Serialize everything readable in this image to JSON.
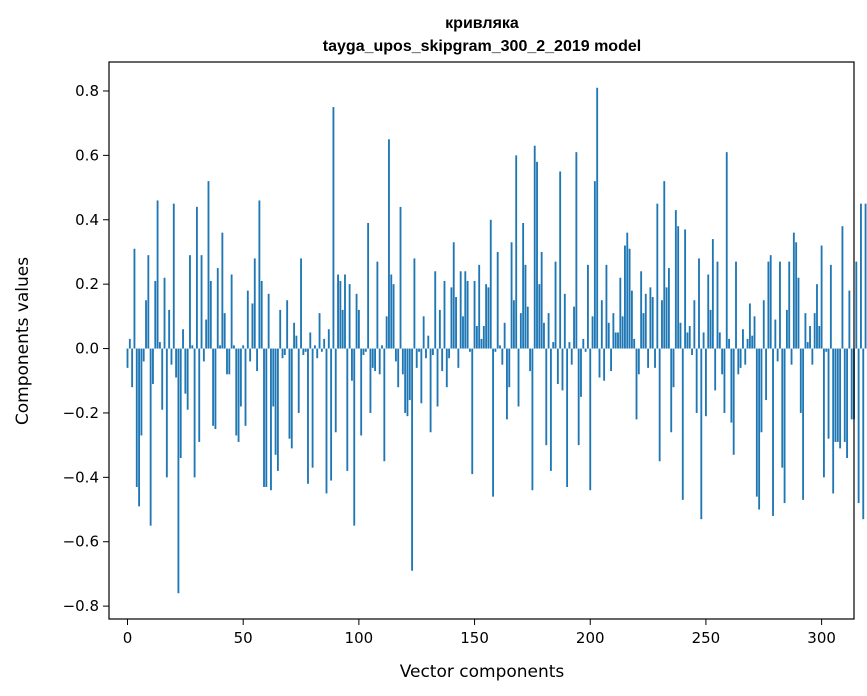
{
  "chart_data": {
    "type": "bar",
    "title": "кривляка",
    "subtitle": "tayga_upos_skipgram_300_2_2019 model",
    "xlabel": "Vector components",
    "ylabel": "Components values",
    "xlim": [
      -8,
      314
    ],
    "ylim": [
      -0.84,
      0.89
    ],
    "xticks": [
      0,
      50,
      100,
      150,
      200,
      250,
      300
    ],
    "xtick_labels": [
      "0",
      "50",
      "100",
      "150",
      "200",
      "250",
      "300"
    ],
    "yticks": [
      -0.8,
      -0.6,
      -0.4,
      -0.2,
      0.0,
      0.2,
      0.4,
      0.6,
      0.8
    ],
    "ytick_labels": [
      "−0.8",
      "−0.6",
      "−0.4",
      "−0.2",
      "0.0",
      "0.2",
      "0.4",
      "0.6",
      "0.8"
    ],
    "grid": false,
    "color": "#1f77b4",
    "values": [
      -0.06,
      0.03,
      -0.12,
      0.31,
      -0.43,
      -0.49,
      -0.27,
      -0.04,
      0.15,
      0.29,
      -0.55,
      -0.11,
      0.21,
      0.46,
      0.02,
      -0.19,
      0.22,
      -0.4,
      0.12,
      -0.05,
      0.45,
      -0.09,
      -0.76,
      -0.34,
      0.06,
      -0.14,
      -0.19,
      0.29,
      0.01,
      -0.4,
      0.44,
      -0.29,
      0.29,
      -0.04,
      0.09,
      0.52,
      0.21,
      -0.24,
      -0.25,
      0.25,
      0.01,
      0.36,
      0.11,
      -0.08,
      -0.08,
      0.23,
      0.01,
      -0.27,
      -0.29,
      -0.18,
      0.01,
      -0.24,
      0.18,
      -0.04,
      0.14,
      0.28,
      -0.07,
      0.46,
      0.21,
      -0.43,
      -0.43,
      0.17,
      -0.44,
      -0.18,
      -0.33,
      -0.38,
      0.12,
      -0.03,
      -0.02,
      0.15,
      -0.28,
      -0.31,
      0.08,
      0.04,
      -0.2,
      0.28,
      -0.02,
      -0.01,
      -0.42,
      0.05,
      -0.37,
      0.01,
      -0.03,
      0.11,
      -0.01,
      0.03,
      -0.45,
      0.06,
      -0.41,
      0.75,
      -0.26,
      0.23,
      0.21,
      0.12,
      0.23,
      -0.38,
      0.2,
      -0.1,
      -0.55,
      0.17,
      0.12,
      -0.27,
      -0.02,
      -0.01,
      0.39,
      -0.2,
      -0.06,
      -0.07,
      0.27,
      -0.08,
      0.01,
      -0.35,
      0.1,
      0.65,
      0.23,
      0.2,
      -0.04,
      -0.12,
      0.44,
      -0.08,
      -0.2,
      -0.21,
      -0.16,
      -0.69,
      0.28,
      -0.06,
      -0.01,
      -0.17,
      0.1,
      -0.03,
      0.04,
      -0.26,
      -0.02,
      0.24,
      -0.18,
      0.12,
      -0.07,
      0.21,
      -0.12,
      -0.03,
      0.19,
      0.33,
      0.16,
      -0.06,
      0.24,
      0.1,
      0.24,
      0.21,
      -0.01,
      -0.39,
      0.21,
      0.07,
      0.26,
      0.03,
      0.07,
      0.2,
      0.19,
      0.4,
      -0.46,
      -0.01,
      0.3,
      0.01,
      -0.05,
      0.08,
      -0.22,
      -0.12,
      0.33,
      0.15,
      0.6,
      -0.18,
      0.11,
      0.39,
      0.26,
      0.13,
      -0.07,
      -0.44,
      0.63,
      0.58,
      0.2,
      0.3,
      0.08,
      -0.3,
      0.11,
      -0.38,
      0.02,
      0.27,
      -0.11,
      0.55,
      -0.13,
      0.17,
      -0.43,
      0.02,
      -0.05,
      0.13,
      0.61,
      -0.3,
      -0.15,
      0.03,
      -0.01,
      0.26,
      -0.44,
      0.1,
      0.52,
      0.81,
      -0.09,
      0.15,
      -0.1,
      0.26,
      0.08,
      -0.07,
      0.11,
      0.05,
      0.05,
      0.22,
      0.1,
      0.32,
      0.36,
      0.31,
      0.18,
      0.03,
      -0.22,
      -0.08,
      0.24,
      0.11,
      0.17,
      -0.06,
      0.19,
      0.16,
      -0.06,
      0.45,
      -0.35,
      0.15,
      0.52,
      0.19,
      0.25,
      -0.26,
      -0.12,
      0.43,
      0.38,
      0.08,
      -0.47,
      0.37,
      0.05,
      0.07,
      -0.02,
      0.15,
      -0.2,
      0.28,
      -0.53,
      0.05,
      -0.21,
      0.23,
      0.12,
      0.34,
      -0.13,
      0.27,
      0.05,
      -0.08,
      -0.2,
      0.61,
      0.03,
      -0.23,
      -0.33,
      0.27,
      -0.08,
      -0.06,
      0.06,
      -0.05,
      0.03,
      0.14,
      0.04,
      0.1,
      -0.46,
      -0.5,
      -0.26,
      0.15,
      -0.16,
      0.27,
      0.29,
      -0.52,
      0.09,
      -0.04,
      0.27,
      -0.37,
      -0.48,
      0.12,
      0.27,
      -0.05,
      0.36,
      0.33,
      0.22,
      -0.2,
      -0.47,
      0.11,
      0.02,
      0.07,
      -0.05,
      0.11,
      0.2,
      0.07,
      0.32,
      -0.4,
      -0.01,
      -0.28,
      0.26,
      -0.45,
      -0.29,
      -0.29,
      -0.31,
      0.38,
      -0.29,
      -0.34,
      0.18,
      -0.22,
      -0.22,
      0.27,
      -0.48,
      0.45,
      -0.53,
      0.45,
      -0.53
    ]
  }
}
